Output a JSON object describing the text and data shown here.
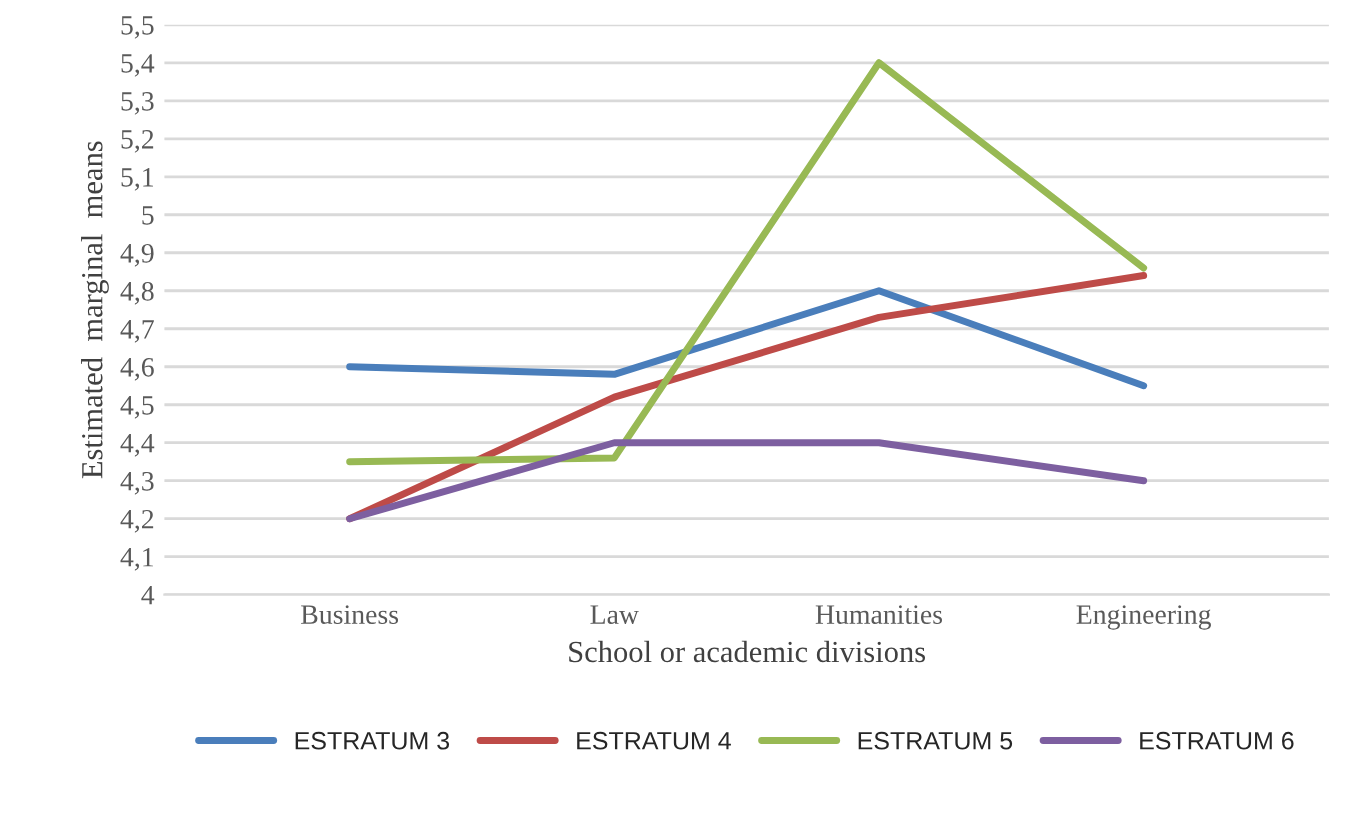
{
  "chart_data": {
    "type": "line",
    "xlabel": "School or academic divisions",
    "ylabel": "Estimated  marginal  means",
    "categories": [
      "Business",
      "Law",
      "Humanities",
      "Engineering"
    ],
    "series": [
      {
        "name": "ESTRATUM 3",
        "color": "#4a7ebb",
        "values": [
          4.6,
          4.58,
          4.8,
          4.55
        ]
      },
      {
        "name": "ESTRATUM 4",
        "color": "#be4b48",
        "values": [
          4.2,
          4.52,
          4.73,
          4.84
        ]
      },
      {
        "name": "ESTRATUM 5",
        "color": "#98b954",
        "values": [
          4.35,
          4.36,
          5.4,
          4.86
        ]
      },
      {
        "name": "ESTRATUM 6",
        "color": "#7d5fa0",
        "values": [
          4.2,
          4.4,
          4.4,
          4.3
        ]
      }
    ],
    "ylim": [
      4,
      5.5
    ],
    "yticks": [
      {
        "value": 4,
        "label": "4"
      },
      {
        "value": 4.1,
        "label": "4,1"
      },
      {
        "value": 4.2,
        "label": "4,2"
      },
      {
        "value": 4.3,
        "label": "4,3"
      },
      {
        "value": 4.4,
        "label": "4,4"
      },
      {
        "value": 4.5,
        "label": "4,5"
      },
      {
        "value": 4.6,
        "label": "4,6"
      },
      {
        "value": 4.7,
        "label": "4,7"
      },
      {
        "value": 4.8,
        "label": "4,8"
      },
      {
        "value": 4.9,
        "label": "4,9"
      },
      {
        "value": 5,
        "label": "5"
      },
      {
        "value": 5.1,
        "label": "5,1"
      },
      {
        "value": 5.2,
        "label": "5,2"
      },
      {
        "value": 5.3,
        "label": "5,3"
      },
      {
        "value": 5.4,
        "label": "5,4"
      },
      {
        "value": 5.5,
        "label": "5,5"
      }
    ],
    "grid": "y",
    "legend": "bottom",
    "marker": "none",
    "line_style": "solid"
  }
}
